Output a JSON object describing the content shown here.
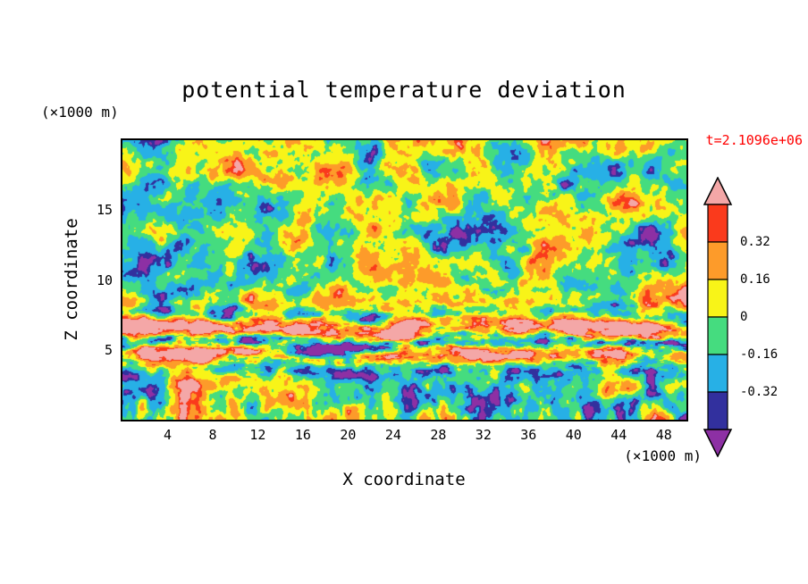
{
  "chart_data": {
    "type": "heatmap",
    "style": "filled-contour",
    "title": "potential temperature deviation",
    "xlabel": "X coordinate",
    "ylabel": "Z coordinate",
    "x_unit_label": "(×1000 m)",
    "y_unit_label": "(×1000 m)",
    "xlim": [
      0,
      50
    ],
    "ylim": [
      0,
      20
    ],
    "x_ticks": [
      4,
      8,
      12,
      16,
      20,
      24,
      28,
      32,
      36,
      40,
      44,
      48
    ],
    "y_ticks": [
      5,
      10,
      15
    ],
    "grid": false,
    "annotation": "t=2.1096e+06",
    "annotation_color": "#ff0000",
    "legend_position": "right",
    "colorbar": {
      "orientation": "vertical",
      "tick_labels": [
        "0.32",
        "0.16",
        "0",
        "-0.16",
        "-0.32"
      ],
      "levels": [
        -0.4,
        -0.32,
        -0.16,
        0,
        0.16,
        0.32,
        0.4
      ],
      "colors_top_to_bottom": [
        "#f4a7a7",
        "#fa3a1c",
        "#fd9b2a",
        "#f8f418",
        "#45dc7f",
        "#27b0e6",
        "#32309e",
        "#8d30a4"
      ],
      "extend_above_color": "#f4a7a7",
      "extend_below_color": "#8d30a4"
    }
  }
}
